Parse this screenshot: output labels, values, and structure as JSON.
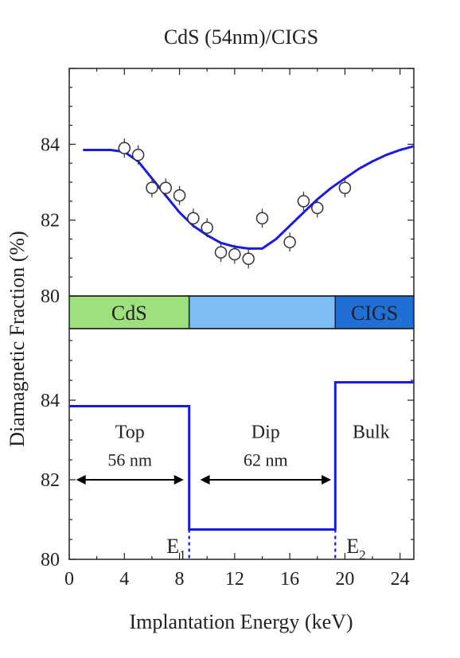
{
  "chart_data": [
    {
      "type": "scatter",
      "title": "CdS (54nm)/CIGS",
      "xlim": [
        0,
        25
      ],
      "ylim": [
        80,
        86
      ],
      "yticks": [
        80,
        82,
        84
      ],
      "points": {
        "x": [
          4,
          5,
          6,
          7,
          8,
          9,
          10,
          11,
          12,
          13,
          14,
          16,
          17,
          18,
          20
        ],
        "y": [
          83.9,
          83.72,
          82.85,
          82.85,
          82.65,
          82.05,
          81.8,
          81.15,
          81.1,
          80.98,
          82.05,
          81.42,
          82.5,
          82.32,
          82.85
        ]
      },
      "fit": {
        "x": [
          1,
          2,
          3,
          4,
          5,
          6,
          7,
          8,
          9,
          10,
          11,
          12,
          13,
          14,
          15,
          16,
          17,
          18,
          19,
          20,
          21,
          22,
          23,
          24,
          25
        ],
        "y": [
          83.85,
          83.85,
          83.85,
          83.8,
          83.55,
          83.1,
          82.65,
          82.2,
          81.85,
          81.6,
          81.4,
          81.3,
          81.25,
          81.25,
          81.5,
          81.85,
          82.2,
          82.55,
          82.85,
          83.1,
          83.35,
          83.55,
          83.72,
          83.85,
          83.95
        ]
      },
      "layers": [
        {
          "label": "CdS",
          "x_from": 0,
          "x_to": 8.7,
          "color": "#9de07d"
        },
        {
          "label": "",
          "x_from": 8.7,
          "x_to": 19.3,
          "color": "#7dbdf5"
        },
        {
          "label": "CIGS",
          "x_from": 19.3,
          "x_to": 25,
          "color": "#1f6fd6"
        }
      ]
    },
    {
      "type": "line",
      "xlabel": "Implantation Energy (keV)",
      "ylabel": "Diamagnetic Fraction (%)",
      "xlim": [
        0,
        25
      ],
      "ylim": [
        80,
        85.8
      ],
      "xticks": [
        0,
        4,
        8,
        12,
        16,
        20,
        24
      ],
      "yticks": [
        80,
        82,
        84
      ],
      "step": {
        "x": [
          0,
          8.7,
          8.7,
          19.3,
          19.3,
          25
        ],
        "y": [
          83.85,
          83.85,
          80.75,
          80.75,
          84.45,
          84.45
        ]
      },
      "markers": [
        {
          "letter": "E",
          "subscript": "1",
          "x": 8.7
        },
        {
          "letter": "E",
          "subscript": "2",
          "x": 19.3
        }
      ],
      "regions": [
        {
          "name": "Top",
          "size": "56 nm",
          "x_from": 0.5,
          "x_to": 8.3
        },
        {
          "name": "Dip",
          "size": "62 nm",
          "x_from": 9.5,
          "x_to": 19.0
        },
        {
          "name": "Bulk",
          "size": "",
          "x_from": 19.3,
          "x_to": 25
        }
      ]
    }
  ],
  "colors": {
    "line": "#1a1ae6",
    "axis": "#222222",
    "marker": "#333333"
  }
}
